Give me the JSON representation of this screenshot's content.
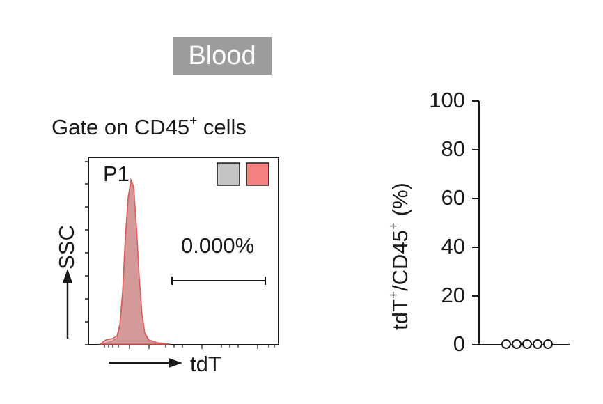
{
  "header": {
    "tissue_label": "Blood"
  },
  "histogram_panel": {
    "title": "Gate on CD45",
    "title_superscript": "+",
    "title_suffix": " cells",
    "gate_name": "P1",
    "gate_percentage": "0.000%",
    "x_axis_label": "tdT",
    "y_axis_label": "SSC",
    "legend_colors": [
      "#c4c4c4",
      "#f48080"
    ]
  },
  "colors": {
    "overlay_gray": "#b8b0b0",
    "overlay_red": "#e05a5a"
  },
  "chart_data": {
    "type": "scatter",
    "title": "",
    "ylabel": "tdT+/CD45+ (%)",
    "ylabel_parts": {
      "a": "tdT",
      "a_sup": "+",
      "b": "/CD45",
      "b_sup": "+",
      "c": " (%)"
    },
    "ylim": [
      0,
      100
    ],
    "yticks": [
      0,
      20,
      40,
      60,
      80,
      100
    ],
    "series": [
      {
        "name": "tdT+/CD45+",
        "values": [
          0,
          0,
          0,
          0,
          0
        ]
      }
    ]
  }
}
